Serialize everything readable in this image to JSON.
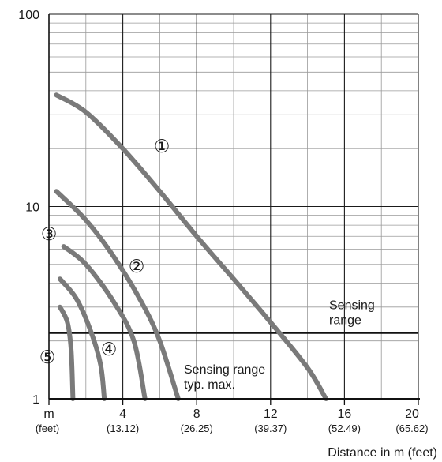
{
  "chart_data": {
    "type": "line",
    "x_scale": "linear",
    "y_scale": "log",
    "xlim": [
      0,
      20
    ],
    "ylim": [
      1,
      100
    ],
    "x_ticks": [
      {
        "value": 0,
        "label": "m",
        "sublabel": "(feet)"
      },
      {
        "value": 4,
        "label": "4",
        "sublabel": "(13.12)"
      },
      {
        "value": 8,
        "label": "8",
        "sublabel": "(26.25)"
      },
      {
        "value": 12,
        "label": "12",
        "sublabel": "(39.37)"
      },
      {
        "value": 16,
        "label": "16",
        "sublabel": "(52.49)"
      },
      {
        "value": 20,
        "label": "20",
        "sublabel": "(65.62)"
      }
    ],
    "y_ticks": [
      {
        "value": 1,
        "label": "1"
      },
      {
        "value": 10,
        "label": "10"
      },
      {
        "value": 100,
        "label": "100"
      }
    ],
    "xlabel": "Distance in m (feet)",
    "grid": true,
    "series": [
      {
        "marker": "①",
        "points": [
          [
            0.4,
            38
          ],
          [
            2.0,
            31
          ],
          [
            4.0,
            20
          ],
          [
            6.0,
            12
          ],
          [
            8.0,
            7
          ],
          [
            10.0,
            4.2
          ],
          [
            12.0,
            2.5
          ],
          [
            14.0,
            1.45
          ],
          [
            15.0,
            1.0
          ]
        ]
      },
      {
        "marker": "②",
        "points": [
          [
            0.4,
            12
          ],
          [
            2.0,
            8.5
          ],
          [
            3.5,
            5.5
          ],
          [
            5.0,
            3.2
          ],
          [
            6.0,
            2.0
          ],
          [
            7.0,
            1.0
          ]
        ]
      },
      {
        "marker": "③",
        "points": [
          [
            0.8,
            6.2
          ],
          [
            2.0,
            5.0
          ],
          [
            3.5,
            3.2
          ],
          [
            4.6,
            2.0
          ],
          [
            5.2,
            1.0
          ]
        ]
      },
      {
        "marker": "④",
        "points": [
          [
            0.6,
            4.2
          ],
          [
            1.5,
            3.3
          ],
          [
            2.3,
            2.2
          ],
          [
            2.8,
            1.5
          ],
          [
            3.0,
            1.0
          ]
        ]
      },
      {
        "marker": "⑤",
        "points": [
          [
            0.6,
            3.0
          ],
          [
            1.0,
            2.5
          ],
          [
            1.2,
            1.8
          ],
          [
            1.3,
            1.0
          ]
        ]
      }
    ],
    "reference_lines": [
      {
        "y": 2.2,
        "label_lines": [
          "Sensing",
          "range"
        ]
      }
    ],
    "annotations": [
      {
        "text_lines": [
          "Sensing range",
          "typ. max."
        ]
      }
    ]
  }
}
